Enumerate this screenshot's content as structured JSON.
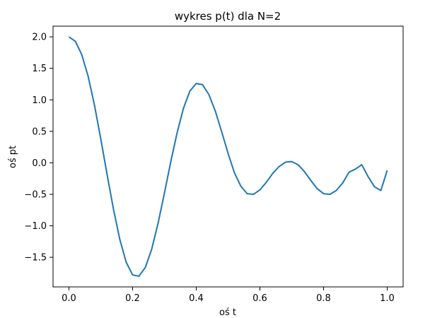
{
  "chart_data": {
    "type": "line",
    "title": "wykres p(t) dla N=2",
    "xlabel": "oś t",
    "ylabel": "oś pt",
    "xlim": [
      -0.05,
      1.05
    ],
    "ylim": [
      -1.97,
      2.17
    ],
    "xticks": [
      0.0,
      0.2,
      0.4,
      0.6,
      0.8,
      1.0
    ],
    "xtick_labels": [
      "0.0",
      "0.2",
      "0.4",
      "0.6",
      "0.8",
      "1.0"
    ],
    "yticks": [
      -1.5,
      -1.0,
      -0.5,
      0.0,
      0.5,
      1.0,
      1.5,
      2.0
    ],
    "ytick_labels": [
      "−1.5",
      "−1.0",
      "−0.5",
      "0.0",
      "0.5",
      "1.0",
      "1.5",
      "2.0"
    ],
    "grid": false,
    "series": [
      {
        "color": "#1f77b4",
        "x": [
          0.0,
          0.02,
          0.04,
          0.06,
          0.08,
          0.1,
          0.12,
          0.14,
          0.16,
          0.18,
          0.2,
          0.22,
          0.24,
          0.26,
          0.28,
          0.3,
          0.32,
          0.34,
          0.36,
          0.38,
          0.4,
          0.42,
          0.44,
          0.46,
          0.48,
          0.5,
          0.52,
          0.54,
          0.56,
          0.58,
          0.6,
          0.62,
          0.64,
          0.66,
          0.68,
          0.7,
          0.72,
          0.74,
          0.76,
          0.78,
          0.8,
          0.82,
          0.84,
          0.86,
          0.88,
          0.9,
          0.92,
          0.94,
          0.96,
          0.98,
          1.0
        ],
        "y": [
          2.0,
          1.93,
          1.72,
          1.38,
          0.92,
          0.38,
          -0.19,
          -0.74,
          -1.22,
          -1.58,
          -1.78,
          -1.8,
          -1.66,
          -1.37,
          -0.96,
          -0.48,
          0.02,
          0.48,
          0.87,
          1.14,
          1.26,
          1.24,
          1.08,
          0.82,
          0.49,
          0.15,
          -0.16,
          -0.37,
          -0.49,
          -0.5,
          -0.43,
          -0.31,
          -0.17,
          -0.06,
          0.01,
          0.02,
          -0.03,
          -0.14,
          -0.28,
          -0.41,
          -0.49,
          -0.5,
          -0.44,
          -0.32,
          -0.15,
          -0.1,
          -0.03,
          -0.22,
          -0.38,
          -0.44,
          -0.12
        ]
      }
    ]
  }
}
